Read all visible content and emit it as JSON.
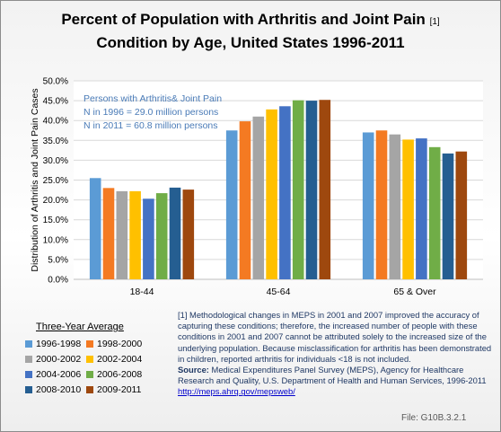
{
  "chart_data": {
    "type": "bar",
    "title_line1": "Percent of Population with Arthritis and Joint Pain",
    "title_ref": "[1]",
    "title_line2": "Condition by Age, United States 1996-2011",
    "ylabel": "Distribution of Arthritis and Joint Pain Cases",
    "xlabel": "",
    "ylim": [
      0,
      50
    ],
    "yticks": [
      "0.0%",
      "5.0%",
      "10.0%",
      "15.0%",
      "20.0%",
      "25.0%",
      "30.0%",
      "35.0%",
      "40.0%",
      "45.0%",
      "50.0%"
    ],
    "grid": true,
    "categories": [
      "18-44",
      "45-64",
      "65 & Over"
    ],
    "series": [
      {
        "name": "1996-1998",
        "color": "#5b9bd5",
        "values": [
          25.5,
          37.5,
          37.0
        ]
      },
      {
        "name": "1998-2000",
        "color": "#f47a22",
        "values": [
          23.0,
          39.8,
          37.5
        ]
      },
      {
        "name": "2000-2002",
        "color": "#a5a5a5",
        "values": [
          22.2,
          41.0,
          36.5
        ]
      },
      {
        "name": "2002-2004",
        "color": "#ffc000",
        "values": [
          22.2,
          42.8,
          35.2
        ]
      },
      {
        "name": "2004-2006",
        "color": "#4472c4",
        "values": [
          20.3,
          43.6,
          35.5
        ]
      },
      {
        "name": "2006-2008",
        "color": "#70ad47",
        "values": [
          21.7,
          45.1,
          33.3
        ]
      },
      {
        "name": "2008-2010",
        "color": "#255e91",
        "values": [
          23.1,
          45.0,
          31.7
        ]
      },
      {
        "name": "2009-2011",
        "color": "#9e480e",
        "values": [
          22.6,
          45.2,
          32.2
        ]
      }
    ],
    "annotation": [
      "Persons with Arthritis& Joint Pain",
      "N  in 1996 = 29.0 million persons",
      "N  in 2011 = 60.8 million persons"
    ],
    "annotation_color": "#4a7bb7",
    "legend_title": "Three-Year  Average",
    "legend_placement": "bottom-left"
  },
  "note": {
    "text": "[1] Methodological changes in MEPS in 2001 and 2007 improved the accuracy of capturing these conditions; therefore, the increased number of people with these conditions in 2001 and 2007 cannot be attributed solely to the increased size of the underlying population. Because misclassification for arthritis has been demonstrated in children, reported arthritis for individuals <18 is not included.",
    "source_label": "Source:",
    "source_text": " Medical Expenditures Panel Survey (MEPS), Agency for Healthcare Research and Quality, U.S. Department of Health and Human Services, 1996-2011 ",
    "source_link": "http://meps.ahrq.gov/mepsweb/"
  },
  "file_id": "File: G10B.3.2.1"
}
